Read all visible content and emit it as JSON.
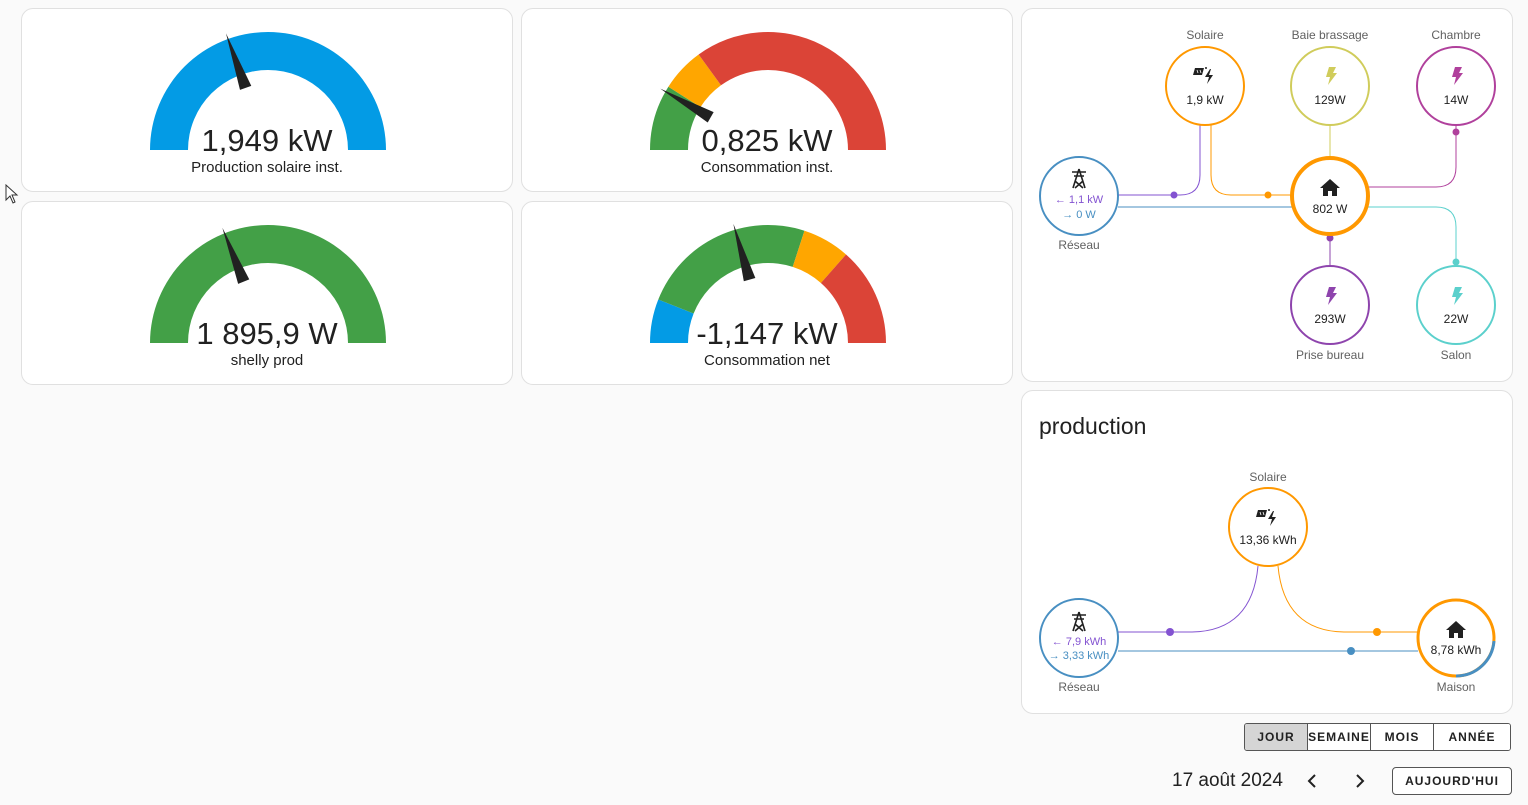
{
  "gauges": [
    {
      "value": "1,949 kW",
      "label": "Production solaire inst.",
      "colors": [
        "#039be5"
      ],
      "level": 0.39
    },
    {
      "value": "0,825 kW",
      "label": "Consommation inst.",
      "colors": [
        "#43a047",
        "#ffa600",
        "#db4437"
      ],
      "level": 0.165
    },
    {
      "value": "1 895,9 W",
      "label": "shelly prod",
      "colors": [
        "#43a047"
      ],
      "level": 0.38
    },
    {
      "value": "-1,147 kW",
      "label": "Consommation net",
      "colors": [
        "#039be5",
        "#43a047",
        "#ffa600",
        "#db4437"
      ],
      "level": 0.41
    }
  ],
  "power_flow": {
    "solar": {
      "name": "Solaire",
      "value": "1,9 kW"
    },
    "baie": {
      "name": "Baie brassage",
      "value": "129W"
    },
    "chambre": {
      "name": "Chambre",
      "value": "14W"
    },
    "grid": {
      "name": "Réseau",
      "import": "← 1,1 kW",
      "export": "→ 0 W"
    },
    "home": {
      "value": "802 W"
    },
    "bureau": {
      "name": "Prise bureau",
      "value": "293W"
    },
    "salon": {
      "name": "Salon",
      "value": "22W"
    }
  },
  "production_card": {
    "title": "production",
    "solar": {
      "name": "Solaire",
      "value": "13,36 kWh"
    },
    "grid": {
      "name": "Réseau",
      "import": "← 7,9 kWh",
      "export": "→ 3,33 kWh"
    },
    "home": {
      "name": "Maison",
      "value": "8,78 kWh"
    }
  },
  "period_buttons": [
    "JOUR",
    "SEMAINE",
    "MOIS",
    "ANNÉE"
  ],
  "active_period": "JOUR",
  "date": "17 août 2024",
  "today_label": "AUJOURD'HUI",
  "colors": {
    "solar": "#ff9800",
    "grid": "#488fc2",
    "grid_import": "#8353d1",
    "home": "#ff9800",
    "baie": "#d0cc5b",
    "chambre": "#b0409c",
    "bureau": "#8e44ad",
    "salon": "#5bd0cc"
  }
}
